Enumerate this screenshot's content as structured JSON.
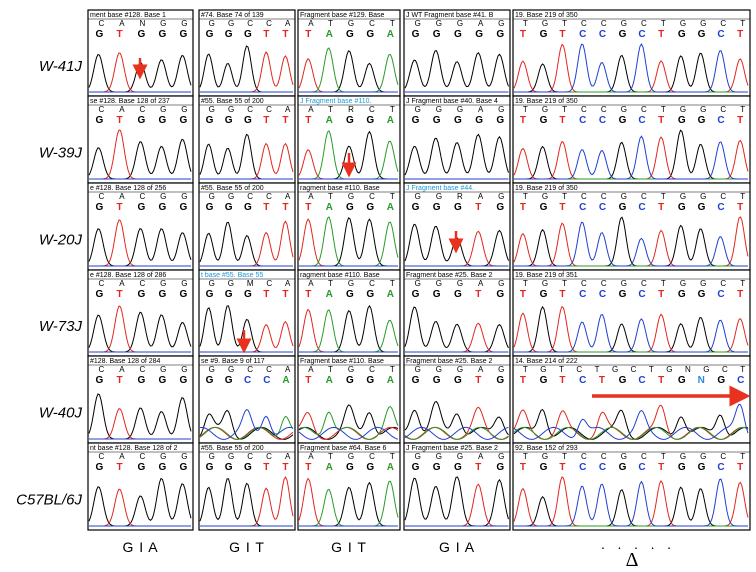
{
  "rows": [
    "W-41J",
    "W-39J",
    "W-20J",
    "W-73J",
    "W-40J",
    "C57BL/6J"
  ],
  "columns": [
    "G I A",
    "G I T",
    "G I T",
    "G I A",
    "· · · · ·"
  ],
  "delta": "Δ",
  "panels": [
    [
      {
        "header": "ment base #128. Base 1",
        "ref": "CANGG",
        "call": "GTGGG"
      },
      {
        "header": "#74. Base 74 of 139",
        "ref": "GGCCA",
        "call": "GGGTT"
      },
      {
        "header": "Fragment base #129. Base",
        "ref": "ATGCT",
        "call": "TAGGA"
      },
      {
        "header": "J WT Fragment base #41. B",
        "ref": "GGGAG",
        "call": "GGGGG"
      },
      {
        "header": "19. Base 219 of 350",
        "ref": "TGTCCGCTGGCT",
        "call": "TGTCCGCTGGCT"
      }
    ],
    [
      {
        "header": "se #128. Base 128 of 237",
        "ref": "CACGG",
        "call": "GTGGG"
      },
      {
        "header": "#55. Base 55 of 200",
        "ref": "GGCCA",
        "call": "GGGTT"
      },
      {
        "header": "J Fragment base #110.",
        "ref": "ATRCT",
        "call": "TAGGA"
      },
      {
        "header": "J Fragment base #40. Base 4",
        "ref": "GGGAG",
        "call": "GGGGG"
      },
      {
        "header": "19. Base 219 of 350",
        "ref": "TGTCCGCTGGCT",
        "call": "TGTCCGCTGGCT"
      }
    ],
    [
      {
        "header": "e #128. Base 128 of 256",
        "ref": "CACGG",
        "call": "GTGGG"
      },
      {
        "header": "#55. Base 55 of 200",
        "ref": "GGCCA",
        "call": "GGGTT"
      },
      {
        "header": "ragment base #110. Base",
        "ref": "ATGCT",
        "call": "TAGGA"
      },
      {
        "header": "J Fragment base #44.",
        "ref": "GGRAG",
        "call": "GGGTG"
      },
      {
        "header": "19. Base 219 of 350",
        "ref": "TGTCCGCTGGCT",
        "call": "TGTCCGCTGGCT"
      }
    ],
    [
      {
        "header": "e #128. Base 128 of 286",
        "ref": "CACGG",
        "call": "GTGGG"
      },
      {
        "header": "t base #55. Base 55",
        "ref": "GGMCA",
        "call": "GGGTT"
      },
      {
        "header": "ragment base #110. Base",
        "ref": "ATGCT",
        "call": "TAGGA"
      },
      {
        "header": "Fragment base #25. Base 2",
        "ref": "GGGAG",
        "call": "GGGTG"
      },
      {
        "header": "19. Base 219 of 351",
        "ref": "TGTCCGCTGGCT",
        "call": "TGTCCGCTGGCT"
      }
    ],
    [
      {
        "header": "#128. Base 128 of 284",
        "ref": "CACGG",
        "call": "GTGGG"
      },
      {
        "header": "se #9. Base 9 of 117",
        "ref": "GGCCA",
        "call": "GGCCA"
      },
      {
        "header": "Fragment base #110. Base",
        "ref": "ATGCT",
        "call": "TAGGA"
      },
      {
        "header": "Fragment base #25. Base 2",
        "ref": "GGGAG",
        "call": "GGGTG"
      },
      {
        "header": "14. Base 214 of 222",
        "ref": "TGTCTGCTGNGCT",
        "call": "TGTCTGCTGNGC"
      }
    ],
    [
      {
        "header": "nt base #128. Base 128 of 2",
        "ref": "CACGG",
        "call": "GTGGG"
      },
      {
        "header": "#55. Base 55 of 200",
        "ref": "GGCCA",
        "call": "GGGTT"
      },
      {
        "header": "Fragment base #64. Base 6",
        "ref": "ATGCT",
        "call": "TAGGA"
      },
      {
        "header": "J Fragment base #25. Base 2",
        "ref": "GGGAG",
        "call": "GGGTG"
      },
      {
        "header": "92. Base 152 of 293",
        "ref": "TGTCCGCTGGCT",
        "call": "TGTCCGCTGGCT"
      }
    ]
  ]
}
